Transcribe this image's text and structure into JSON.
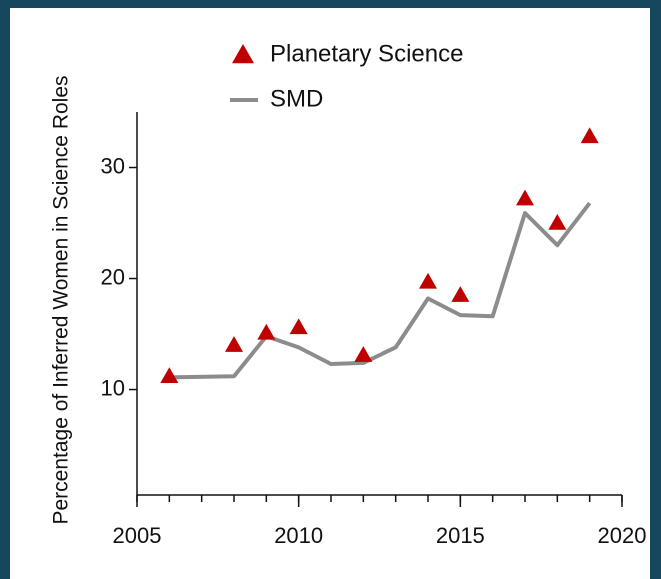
{
  "chart_data": {
    "type": "line",
    "ylabel": "Percentage of Inferred Women in Science Roles",
    "xlim": [
      2005,
      2020
    ],
    "xticks": [
      2005,
      2010,
      2015,
      2020
    ],
    "ylim": [
      0.5,
      35
    ],
    "yticks": [
      10,
      20,
      30
    ],
    "legend": "top",
    "series": [
      {
        "name": "Planetary Science",
        "color": "#c00000",
        "marker": "triangle",
        "x": [
          2006,
          2008,
          2009,
          2010,
          2012,
          2014,
          2015,
          2017,
          2018,
          2019
        ],
        "values": [
          11.2,
          14.0,
          15.1,
          15.6,
          13.1,
          19.7,
          18.5,
          27.2,
          25.0,
          32.8
        ]
      },
      {
        "name": "SMD",
        "color": "#8c8c8c",
        "marker": "line",
        "x": [
          2006,
          2008,
          2009,
          2010,
          2011,
          2012,
          2013,
          2014,
          2015,
          2016,
          2017,
          2018,
          2019
        ],
        "values": [
          11.1,
          11.2,
          14.8,
          13.8,
          12.3,
          12.4,
          13.8,
          18.2,
          16.7,
          16.6,
          25.9,
          23.0,
          26.8
        ]
      }
    ]
  }
}
